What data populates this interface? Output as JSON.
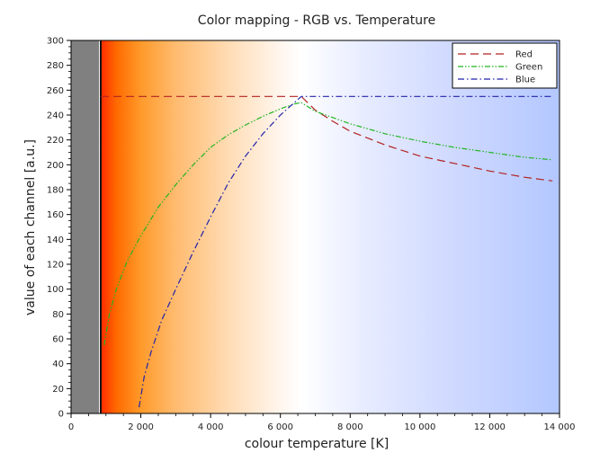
{
  "chart_data": {
    "type": "line",
    "title": "Color mapping - RGB vs. Temperature",
    "xlabel": "colour temperature [K]",
    "ylabel": "value of each channel [a.u.]",
    "xlim": [
      0,
      14000
    ],
    "ylim": [
      0,
      300
    ],
    "x_ticks": [
      0,
      2000,
      4000,
      6000,
      8000,
      10000,
      12000,
      14000
    ],
    "x_tick_labels": [
      "0",
      "2 000",
      "4 000",
      "6 000",
      "8 000",
      "10 000",
      "12 000",
      "14 000"
    ],
    "y_ticks": [
      0,
      20,
      40,
      60,
      80,
      100,
      120,
      140,
      160,
      180,
      200,
      220,
      240,
      260,
      280,
      300
    ],
    "y_tick_labels": [
      "0",
      "20",
      "40",
      "60",
      "80",
      "100",
      "120",
      "140",
      "160",
      "180",
      "200",
      "220",
      "240",
      "260",
      "280",
      "300"
    ],
    "grid": false,
    "legend_position": "top-right",
    "background": {
      "type": "temperature-gradient",
      "gray_band": [
        0,
        800
      ],
      "cut_line_x": 850,
      "gray_color": "#808080",
      "stops": [
        {
          "t": 850,
          "color": "#ff2a00"
        },
        {
          "t": 1300,
          "color": "#ff6a00"
        },
        {
          "t": 2000,
          "color": "#ff9a2a"
        },
        {
          "t": 3000,
          "color": "#ffbb70"
        },
        {
          "t": 4500,
          "color": "#ffdcb4"
        },
        {
          "t": 6000,
          "color": "#fff6ee"
        },
        {
          "t": 6600,
          "color": "#ffffff"
        },
        {
          "t": 8500,
          "color": "#e6ebff"
        },
        {
          "t": 11000,
          "color": "#cfd9ff"
        },
        {
          "t": 13900,
          "color": "#b4c8ff"
        }
      ]
    },
    "series": [
      {
        "name": "Red",
        "color": "#b22222",
        "dash": "long-dash",
        "points": [
          [
            850,
            255
          ],
          [
            2000,
            255
          ],
          [
            4000,
            255
          ],
          [
            6000,
            255
          ],
          [
            6600,
            255
          ],
          [
            7000,
            244
          ],
          [
            7500,
            235
          ],
          [
            8000,
            227
          ],
          [
            9000,
            216
          ],
          [
            10000,
            207
          ],
          [
            11000,
            201
          ],
          [
            12000,
            195
          ],
          [
            13000,
            190
          ],
          [
            13800,
            187
          ]
        ]
      },
      {
        "name": "Green",
        "color": "#22b422",
        "dash": "dash-dot-dot",
        "points": [
          [
            950,
            55
          ],
          [
            1100,
            80
          ],
          [
            1300,
            100
          ],
          [
            1600,
            122
          ],
          [
            2000,
            143
          ],
          [
            2500,
            166
          ],
          [
            3000,
            184
          ],
          [
            3500,
            200
          ],
          [
            4000,
            214
          ],
          [
            4500,
            224
          ],
          [
            5000,
            232
          ],
          [
            5500,
            239
          ],
          [
            6000,
            245
          ],
          [
            6400,
            249
          ],
          [
            6600,
            250
          ],
          [
            7000,
            243
          ],
          [
            7500,
            238
          ],
          [
            8000,
            233
          ],
          [
            9000,
            225
          ],
          [
            10000,
            219
          ],
          [
            11000,
            214
          ],
          [
            12000,
            210
          ],
          [
            13000,
            206
          ],
          [
            13800,
            204
          ]
        ]
      },
      {
        "name": "Blue",
        "color": "#2222aa",
        "dash": "dash-dot",
        "points": [
          [
            1950,
            5
          ],
          [
            2100,
            30
          ],
          [
            2300,
            50
          ],
          [
            2600,
            75
          ],
          [
            3000,
            100
          ],
          [
            3500,
            130
          ],
          [
            4000,
            158
          ],
          [
            4500,
            185
          ],
          [
            5000,
            207
          ],
          [
            5500,
            225
          ],
          [
            6000,
            240
          ],
          [
            6400,
            250
          ],
          [
            6600,
            255
          ],
          [
            8000,
            255
          ],
          [
            10000,
            255
          ],
          [
            12000,
            255
          ],
          [
            13800,
            255
          ]
        ]
      }
    ]
  }
}
